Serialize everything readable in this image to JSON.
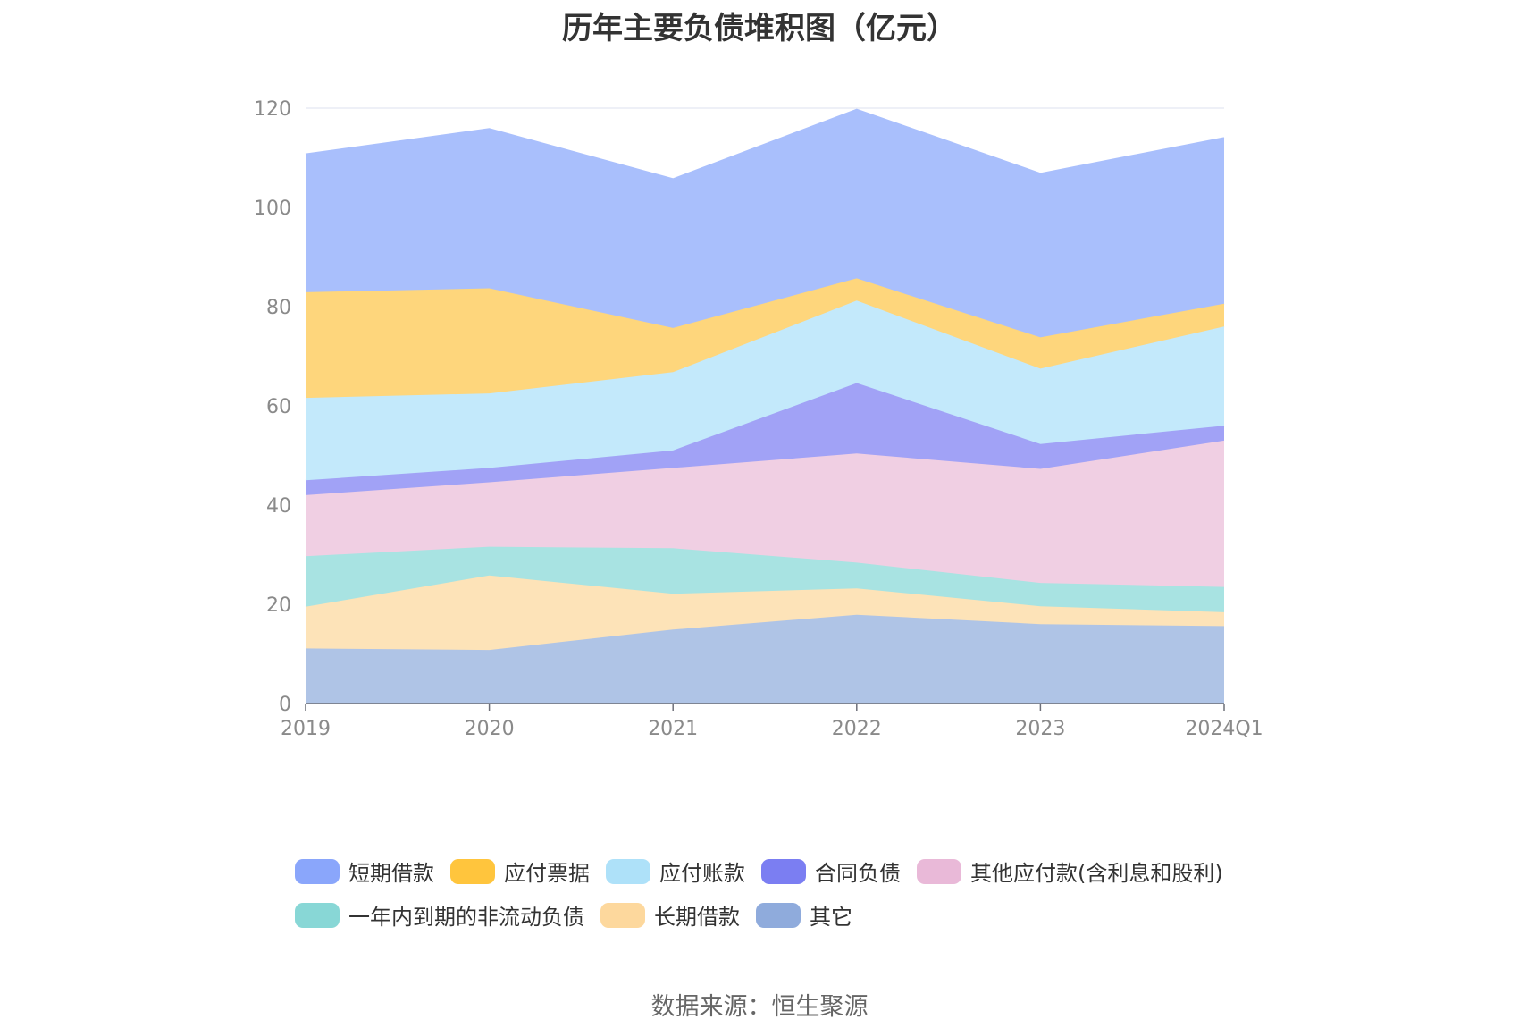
{
  "title": "历年主要负债堆积图（亿元）",
  "source": "数据来源：恒生聚源",
  "chart_data": {
    "type": "area",
    "stacked": true,
    "title": "历年主要负债堆积图（亿元）",
    "categories": [
      "2019",
      "2020",
      "2021",
      "2022",
      "2023",
      "2024Q1"
    ],
    "ylim": [
      0,
      120
    ],
    "yticks": [
      0,
      20,
      40,
      60,
      80,
      100,
      120
    ],
    "grid": true,
    "legend_position": "bottom",
    "series": [
      {
        "name": "其它",
        "color": "#8fabdc",
        "fill": "#afc4e6",
        "values": [
          11.1,
          10.8,
          14.9,
          17.9,
          16.0,
          15.6
        ]
      },
      {
        "name": "长期借款",
        "color": "#fdd89d",
        "fill": "#fde3b8",
        "values": [
          8.4,
          15.0,
          7.2,
          5.3,
          3.6,
          2.8
        ]
      },
      {
        "name": "一年内到期的非流动负债",
        "color": "#88d7d6",
        "fill": "#a8e3e2",
        "values": [
          10.2,
          5.8,
          9.2,
          5.2,
          4.7,
          5.1
        ]
      },
      {
        "name": "其他应付款(含利息和股利)",
        "color": "#e9b9d8",
        "fill": "#f0cfe3",
        "values": [
          12.3,
          13.0,
          16.2,
          22.0,
          23.0,
          29.5
        ]
      },
      {
        "name": "合同负债",
        "color": "#7b7ef2",
        "fill": "#a1a2f6",
        "values": [
          3.0,
          2.9,
          3.5,
          14.2,
          5.0,
          3.0
        ]
      },
      {
        "name": "应付账款",
        "color": "#aee1f9",
        "fill": "#c3e9fb",
        "values": [
          16.6,
          15.0,
          15.8,
          16.6,
          15.2,
          20.0
        ]
      },
      {
        "name": "应付票据",
        "color": "#ffc53d",
        "fill": "#fed67c",
        "values": [
          21.3,
          21.2,
          8.9,
          4.5,
          6.3,
          4.6
        ]
      },
      {
        "name": "短期借款",
        "color": "#8aa6fb",
        "fill": "#a9bffc",
        "values": [
          27.8,
          32.1,
          30.0,
          34.0,
          33.0,
          33.4
        ]
      }
    ]
  },
  "legend": {
    "rows": [
      [
        {
          "label": "短期借款",
          "color": "#8aa6fb"
        },
        {
          "label": "应付票据",
          "color": "#ffc53d"
        },
        {
          "label": "应付账款",
          "color": "#aee1f9"
        },
        {
          "label": "合同负债",
          "color": "#7b7ef2"
        },
        {
          "label": "其他应付款(含利息和股利)",
          "color": "#e9b9d8"
        }
      ],
      [
        {
          "label": "一年内到期的非流动负债",
          "color": "#88d7d6"
        },
        {
          "label": "长期借款",
          "color": "#fdd89d"
        },
        {
          "label": "其它",
          "color": "#8fabdc"
        }
      ]
    ]
  }
}
